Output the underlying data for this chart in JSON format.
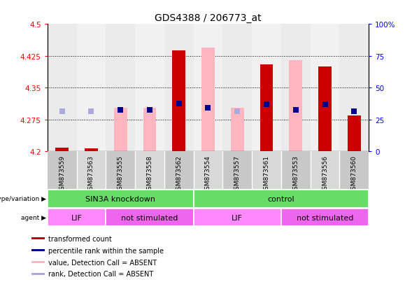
{
  "title": "GDS4388 / 206773_at",
  "samples": [
    "GSM873559",
    "GSM873563",
    "GSM873555",
    "GSM873558",
    "GSM873562",
    "GSM873554",
    "GSM873557",
    "GSM873561",
    "GSM873553",
    "GSM873556",
    "GSM873560"
  ],
  "ylim_left": [
    4.2,
    4.5
  ],
  "yticks_left": [
    4.2,
    4.275,
    4.35,
    4.425,
    4.5
  ],
  "ytick_labels_left": [
    "4.2",
    "4.275",
    "4.35",
    "4.425",
    "4.5"
  ],
  "ytick_labels_right": [
    "0",
    "25",
    "50",
    "75",
    "100%"
  ],
  "red_bar_base": 4.2,
  "red_bar_tops": [
    4.208,
    4.207,
    4.2,
    4.2,
    4.437,
    4.2,
    4.2,
    4.405,
    4.2,
    4.4,
    4.285
  ],
  "pink_bar_tops": [
    4.208,
    4.207,
    4.303,
    4.303,
    4.437,
    4.444,
    4.303,
    4.405,
    4.415,
    4.4,
    4.285
  ],
  "blue_dot_y": [
    4.295,
    4.295,
    4.297,
    4.297,
    4.313,
    4.303,
    4.295,
    4.311,
    4.297,
    4.311,
    4.295
  ],
  "absent_mask": [
    true,
    true,
    false,
    false,
    false,
    false,
    true,
    false,
    false,
    false,
    false
  ],
  "color_red": "#CC0000",
  "color_pink": "#FFB6C1",
  "color_blue": "#00008B",
  "color_light_blue": "#AAAADD",
  "bar_width": 0.45,
  "dot_size": 30,
  "grid_dotted_color": "#000000",
  "col_bg_even": "#C8C8C8",
  "col_bg_odd": "#D8D8D8",
  "label_bg": "#C0C0C0",
  "geno_color": "#66DD66",
  "agent_color_lif": "#FF88FF",
  "agent_color_ns": "#EE66EE",
  "legend_items": [
    {
      "label": "transformed count",
      "color": "#CC0000"
    },
    {
      "label": "percentile rank within the sample",
      "color": "#00008B"
    },
    {
      "label": "value, Detection Call = ABSENT",
      "color": "#FFB6C1"
    },
    {
      "label": "rank, Detection Call = ABSENT",
      "color": "#AAAADD"
    }
  ]
}
